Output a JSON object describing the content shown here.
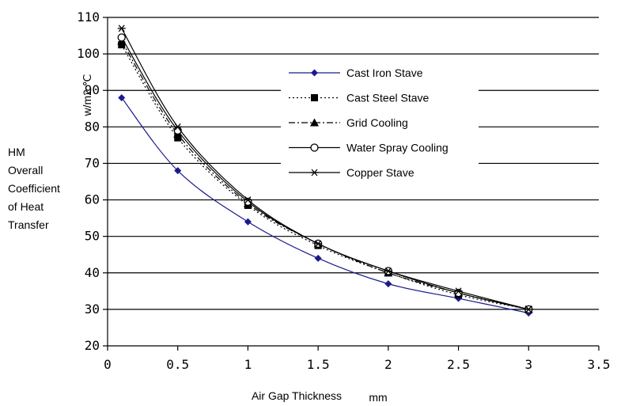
{
  "chart_data": {
    "type": "line",
    "title": "",
    "xlabel": "Air Gap Thickness",
    "xunit": "mm",
    "ylabel_lines": [
      "HM",
      "Overall",
      "Coefficient",
      "of Heat",
      "Transfer"
    ],
    "yunit": "w/m2.℃",
    "xlim": [
      0,
      3.5
    ],
    "ylim": [
      20,
      110
    ],
    "xticks": [
      0,
      0.5,
      1,
      1.5,
      2,
      2.5,
      3,
      3.5
    ],
    "xtick_labels": [
      "0",
      "0.5",
      "1",
      "1.5",
      "2",
      "2.5",
      "3",
      "3.5"
    ],
    "yticks": [
      20,
      30,
      40,
      50,
      60,
      70,
      80,
      90,
      100,
      110
    ],
    "ytick_labels": [
      "20",
      "30",
      "40",
      "50",
      "60",
      "70",
      "80",
      "90",
      "100",
      "110"
    ],
    "grid": "horizontal",
    "legend_position": "upper-center",
    "x": [
      0.1,
      0.5,
      1,
      1.5,
      2,
      2.5,
      3
    ],
    "series": [
      {
        "name": "Cast Iron Stave",
        "values": [
          88,
          68,
          54,
          44,
          37,
          33,
          29
        ],
        "color": "#1a1a8c",
        "dash": "solid",
        "marker": "diamond"
      },
      {
        "name": "Cast Steel Stave",
        "values": [
          102.5,
          77,
          58.5,
          47.5,
          40,
          34,
          30
        ],
        "color": "#000000",
        "dash": "dotted",
        "marker": "square"
      },
      {
        "name": "Grid Cooling",
        "values": [
          103.5,
          78,
          59,
          48,
          40,
          34.5,
          30
        ],
        "color": "#000000",
        "dash": "dashdot",
        "marker": "triangle"
      },
      {
        "name": "Water Spray Cooling",
        "values": [
          104.5,
          79,
          59.5,
          48,
          40.5,
          34.5,
          30
        ],
        "color": "#000000",
        "dash": "solid",
        "marker": "circle"
      },
      {
        "name": "Copper Stave",
        "values": [
          107,
          80,
          60,
          48,
          40.5,
          35,
          30
        ],
        "color": "#000000",
        "dash": "solid",
        "marker": "star"
      }
    ]
  }
}
